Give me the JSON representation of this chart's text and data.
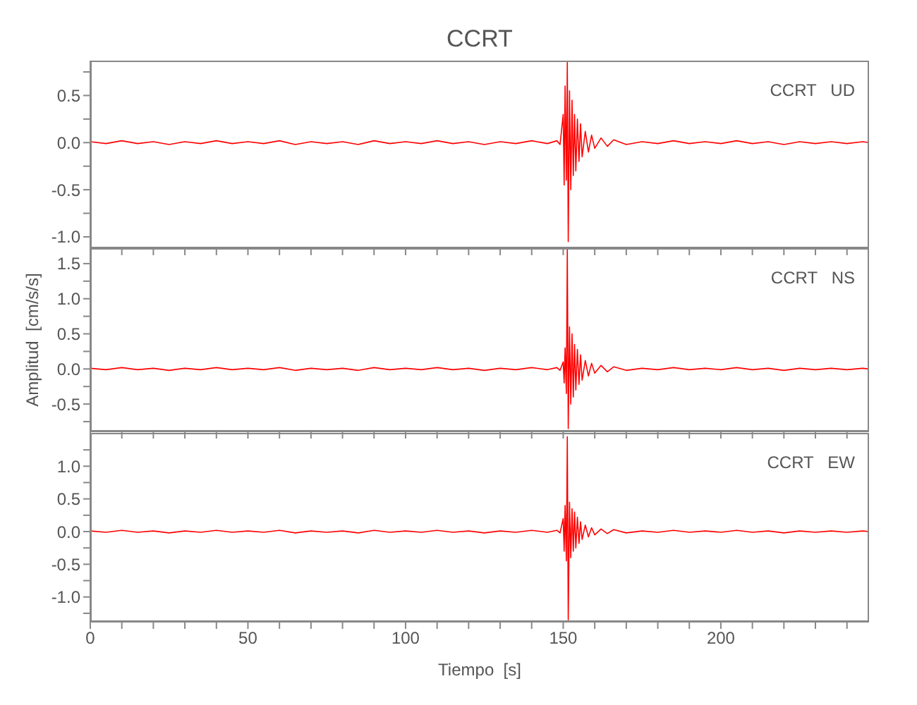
{
  "chart_data": [
    {
      "type": "line",
      "title": "CCRT",
      "annotations": [
        "CCRT   UD"
      ],
      "tick_labels": "y",
      "x": [
        0,
        5,
        10,
        15,
        20,
        25,
        30,
        35,
        40,
        45,
        50,
        55,
        60,
        65,
        70,
        75,
        80,
        85,
        90,
        95,
        100,
        105,
        110,
        115,
        120,
        125,
        130,
        135,
        140,
        145,
        148,
        149,
        150,
        150.3,
        150.6,
        151,
        151.3,
        151.6,
        152,
        152.4,
        152.8,
        153.2,
        153.6,
        154,
        154.5,
        155,
        155.5,
        156,
        157,
        158,
        159,
        160,
        162,
        164,
        166,
        170,
        175,
        180,
        185,
        190,
        195,
        200,
        205,
        210,
        215,
        220,
        225,
        230,
        235,
        240,
        245,
        247
      ],
      "series": [
        {
          "color": "#ff0000",
          "values": [
            0.01,
            -0.01,
            0.02,
            -0.01,
            0.01,
            -0.02,
            0.01,
            -0.01,
            0.02,
            -0.01,
            0.01,
            -0.01,
            0.02,
            -0.02,
            0.01,
            -0.01,
            0.01,
            -0.02,
            0.02,
            -0.01,
            0.01,
            -0.01,
            0.02,
            -0.01,
            0.01,
            -0.02,
            0.01,
            -0.01,
            0.02,
            -0.01,
            0.02,
            -0.02,
            0.3,
            -0.45,
            0.6,
            -0.4,
            0.85,
            -1.05,
            0.55,
            -0.5,
            0.45,
            -0.35,
            0.3,
            -0.3,
            0.25,
            -0.2,
            0.2,
            -0.15,
            0.12,
            -0.1,
            0.08,
            -0.06,
            0.05,
            -0.04,
            0.03,
            -0.02,
            0.01,
            -0.01,
            0.02,
            -0.01,
            0.01,
            -0.01,
            0.02,
            -0.01,
            0.01,
            -0.02,
            0.01,
            -0.01,
            0.01,
            -0.01,
            0.01,
            0
          ]
        }
      ],
      "xlim": [
        0,
        247
      ],
      "ylim": [
        -1.12,
        0.87
      ],
      "xticks": [
        0,
        {
          "value": 10,
          "label": null
        },
        {
          "value": 20,
          "label": null
        },
        {
          "value": 30,
          "label": null
        },
        {
          "value": 40,
          "label": null
        },
        50,
        {
          "value": 60,
          "label": null
        },
        {
          "value": 70,
          "label": null
        },
        {
          "value": 80,
          "label": null
        },
        {
          "value": 90,
          "label": null
        },
        100,
        {
          "value": 110,
          "label": null
        },
        {
          "value": 120,
          "label": null
        },
        {
          "value": 130,
          "label": null
        },
        {
          "value": 140,
          "label": null
        },
        150,
        {
          "value": 160,
          "label": null
        },
        {
          "value": 170,
          "label": null
        },
        {
          "value": 180,
          "label": null
        },
        {
          "value": 190,
          "label": null
        },
        200,
        {
          "value": 210,
          "label": null
        },
        {
          "value": 220,
          "label": null
        },
        {
          "value": 230,
          "label": null
        },
        {
          "value": 240,
          "label": null
        }
      ],
      "yticks": [
        {
          "value": -1,
          "label": "-1.0"
        },
        {
          "value": -0.75,
          "label": null
        },
        {
          "value": -0.5,
          "label": "-0.5"
        },
        {
          "value": -0.25,
          "label": null
        },
        {
          "value": 0,
          "label": "0.0"
        },
        {
          "value": 0.25,
          "label": null
        },
        {
          "value": 0.5,
          "label": "0.5"
        },
        {
          "value": 0.75,
          "label": null
        }
      ]
    },
    {
      "type": "line",
      "ylabel": "Amplitud  [cm/s/s]",
      "annotations": [
        "CCRT   NS"
      ],
      "tick_labels": "y",
      "x": [
        0,
        5,
        10,
        15,
        20,
        25,
        30,
        35,
        40,
        45,
        50,
        55,
        60,
        65,
        70,
        75,
        80,
        85,
        90,
        95,
        100,
        105,
        110,
        115,
        120,
        125,
        130,
        135,
        140,
        145,
        148,
        149,
        150,
        150.3,
        150.6,
        151,
        151.3,
        151.6,
        152,
        152.4,
        152.8,
        153.2,
        153.6,
        154,
        154.5,
        155,
        155.5,
        156,
        157,
        158,
        159,
        160,
        162,
        164,
        166,
        170,
        175,
        180,
        185,
        190,
        195,
        200,
        205,
        210,
        215,
        220,
        225,
        230,
        235,
        240,
        245,
        247
      ],
      "series": [
        {
          "color": "#ff0000",
          "values": [
            0.01,
            -0.01,
            0.02,
            -0.01,
            0.01,
            -0.02,
            0.01,
            -0.01,
            0.02,
            -0.01,
            0.01,
            -0.01,
            0.02,
            -0.02,
            0.01,
            -0.01,
            0.01,
            -0.02,
            0.02,
            -0.01,
            0.01,
            -0.01,
            0.02,
            -0.01,
            0.01,
            -0.02,
            0.01,
            -0.01,
            0.02,
            -0.01,
            0.02,
            -0.02,
            0.1,
            -0.2,
            0.3,
            -0.35,
            1.7,
            -0.85,
            0.6,
            -0.5,
            0.5,
            -0.4,
            0.35,
            -0.3,
            0.28,
            -0.22,
            0.2,
            -0.16,
            0.12,
            -0.1,
            0.08,
            -0.06,
            0.05,
            -0.04,
            0.03,
            -0.02,
            0.01,
            -0.01,
            0.02,
            -0.01,
            0.01,
            -0.01,
            0.02,
            -0.01,
            0.01,
            -0.02,
            0.01,
            -0.01,
            0.01,
            -0.01,
            0.01,
            0
          ]
        }
      ],
      "xlim": [
        0,
        247
      ],
      "ylim": [
        -0.89,
        1.72
      ],
      "xticks": [
        0,
        {
          "value": 10,
          "label": null
        },
        {
          "value": 20,
          "label": null
        },
        {
          "value": 30,
          "label": null
        },
        {
          "value": 40,
          "label": null
        },
        50,
        {
          "value": 60,
          "label": null
        },
        {
          "value": 70,
          "label": null
        },
        {
          "value": 80,
          "label": null
        },
        {
          "value": 90,
          "label": null
        },
        100,
        {
          "value": 110,
          "label": null
        },
        {
          "value": 120,
          "label": null
        },
        {
          "value": 130,
          "label": null
        },
        {
          "value": 140,
          "label": null
        },
        150,
        {
          "value": 160,
          "label": null
        },
        {
          "value": 170,
          "label": null
        },
        {
          "value": 180,
          "label": null
        },
        {
          "value": 190,
          "label": null
        },
        200,
        {
          "value": 210,
          "label": null
        },
        {
          "value": 220,
          "label": null
        },
        {
          "value": 230,
          "label": null
        },
        {
          "value": 240,
          "label": null
        }
      ],
      "yticks": [
        {
          "value": -0.75,
          "label": null
        },
        {
          "value": -0.5,
          "label": "-0.5"
        },
        {
          "value": -0.25,
          "label": null
        },
        {
          "value": 0,
          "label": "0.0"
        },
        {
          "value": 0.25,
          "label": null
        },
        {
          "value": 0.5,
          "label": "0.5"
        },
        {
          "value": 0.75,
          "label": null
        },
        {
          "value": 1,
          "label": "1.0"
        },
        {
          "value": 1.25,
          "label": null
        },
        {
          "value": 1.5,
          "label": "1.5"
        }
      ]
    },
    {
      "type": "line",
      "xlabel": "Tiempo  [s]",
      "annotations": [
        "CCRT   EW"
      ],
      "x": [
        0,
        5,
        10,
        15,
        20,
        25,
        30,
        35,
        40,
        45,
        50,
        55,
        60,
        65,
        70,
        75,
        80,
        85,
        90,
        95,
        100,
        105,
        110,
        115,
        120,
        125,
        130,
        135,
        140,
        145,
        148,
        149,
        150,
        150.3,
        150.6,
        151,
        151.3,
        151.6,
        152,
        152.4,
        152.8,
        153.2,
        153.6,
        154,
        154.5,
        155,
        155.5,
        156,
        157,
        158,
        159,
        160,
        162,
        164,
        166,
        170,
        175,
        180,
        185,
        190,
        195,
        200,
        205,
        210,
        215,
        220,
        225,
        230,
        235,
        240,
        245,
        247
      ],
      "series": [
        {
          "color": "#ff0000",
          "values": [
            0.01,
            -0.01,
            0.02,
            -0.01,
            0.01,
            -0.02,
            0.01,
            -0.01,
            0.02,
            -0.01,
            0.01,
            -0.01,
            0.02,
            -0.02,
            0.01,
            -0.01,
            0.01,
            -0.02,
            0.02,
            -0.01,
            0.01,
            -0.01,
            0.02,
            -0.01,
            0.01,
            -0.02,
            0.01,
            -0.01,
            0.02,
            -0.01,
            0.02,
            -0.02,
            0.2,
            -0.3,
            0.4,
            -0.45,
            1.45,
            -1.35,
            0.45,
            -0.4,
            0.35,
            -0.3,
            0.3,
            -0.25,
            0.22,
            -0.18,
            0.15,
            -0.12,
            0.1,
            -0.08,
            0.06,
            -0.05,
            0.04,
            -0.03,
            0.03,
            -0.02,
            0.01,
            -0.01,
            0.02,
            -0.01,
            0.01,
            -0.01,
            0.02,
            -0.01,
            0.01,
            -0.02,
            0.01,
            -0.01,
            0.01,
            -0.01,
            0.01,
            0
          ]
        }
      ],
      "xlim": [
        0,
        247
      ],
      "ylim": [
        -1.38,
        1.51
      ],
      "xticks": [
        0,
        {
          "value": 10,
          "label": null
        },
        {
          "value": 20,
          "label": null
        },
        {
          "value": 30,
          "label": null
        },
        {
          "value": 40,
          "label": null
        },
        50,
        {
          "value": 60,
          "label": null
        },
        {
          "value": 70,
          "label": null
        },
        {
          "value": 80,
          "label": null
        },
        {
          "value": 90,
          "label": null
        },
        100,
        {
          "value": 110,
          "label": null
        },
        {
          "value": 120,
          "label": null
        },
        {
          "value": 130,
          "label": null
        },
        {
          "value": 140,
          "label": null
        },
        150,
        {
          "value": 160,
          "label": null
        },
        {
          "value": 170,
          "label": null
        },
        {
          "value": 180,
          "label": null
        },
        {
          "value": 190,
          "label": null
        },
        200,
        {
          "value": 210,
          "label": null
        },
        {
          "value": 220,
          "label": null
        },
        {
          "value": 230,
          "label": null
        },
        {
          "value": 240,
          "label": null
        }
      ],
      "yticks": [
        {
          "value": -1.25,
          "label": null
        },
        {
          "value": -1,
          "label": "-1.0"
        },
        {
          "value": -0.75,
          "label": null
        },
        {
          "value": -0.5,
          "label": "-0.5"
        },
        {
          "value": -0.25,
          "label": null
        },
        {
          "value": 0,
          "label": "0.0"
        },
        {
          "value": 0.25,
          "label": null
        },
        {
          "value": 0.5,
          "label": "0.5"
        },
        {
          "value": 0.75,
          "label": null
        },
        {
          "value": 1,
          "label": "1.0"
        },
        {
          "value": 1.25,
          "label": null
        }
      ]
    }
  ]
}
